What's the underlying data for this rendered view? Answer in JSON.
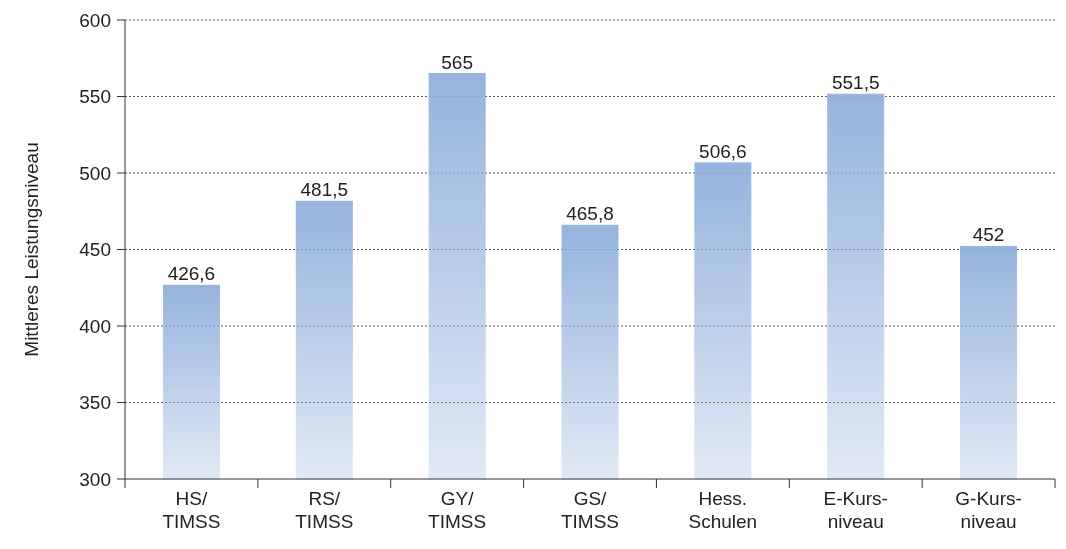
{
  "chart_data": {
    "type": "bar",
    "ylabel": "Mittleres Leistungsniveau",
    "categories": [
      "HS/\nTIMSS",
      "RS/\nTIMSS",
      "GY/\nTIMSS",
      "GS/\nTIMSS",
      "Hess.\nSchulen",
      "E-Kurs-\nniveau",
      "G-Kurs-\nniveau"
    ],
    "values": [
      426.6,
      481.5,
      565,
      465.8,
      506.6,
      551.5,
      452
    ],
    "value_labels": [
      "426,6",
      "481,5",
      "565",
      "465,8",
      "506,6",
      "551,5",
      "452"
    ],
    "color": "#8eaedb",
    "ylim": [
      300,
      600
    ],
    "yticks": [
      300,
      350,
      400,
      450,
      500,
      550,
      600
    ],
    "grid": "y"
  }
}
